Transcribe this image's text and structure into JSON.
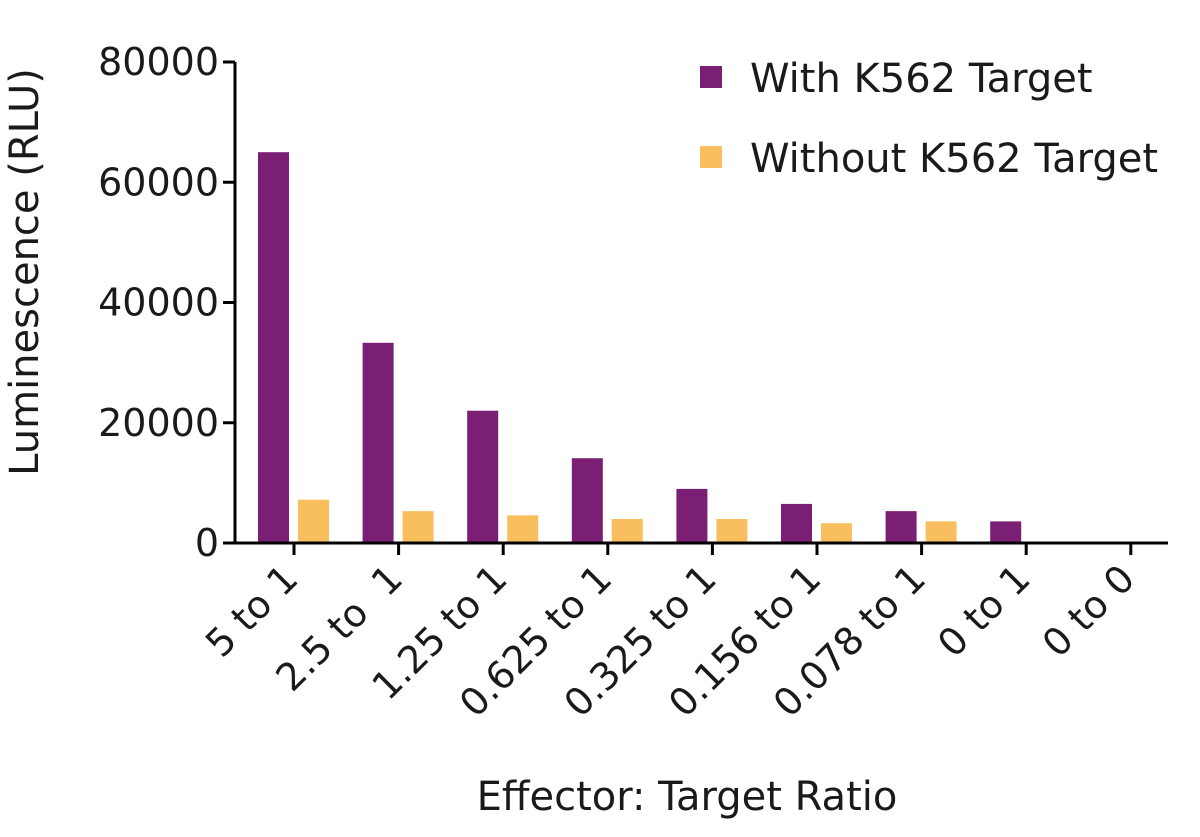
{
  "chart_data": {
    "type": "bar",
    "title": "",
    "xlabel": "Effector: Target Ratio",
    "ylabel": "Luminescence (RLU)",
    "ylim": [
      0,
      80000
    ],
    "yticks": [
      0,
      20000,
      40000,
      60000,
      80000
    ],
    "categories": [
      "5 to 1",
      "2.5 to  1",
      "1.25 to 1",
      "0.625 to 1",
      "0.325 to 1",
      "0.156 to 1",
      "0.078 to 1",
      "0 to 1",
      "0 to 0"
    ],
    "series": [
      {
        "name": "With K562 Target",
        "color": "#7b1f74",
        "values": [
          65000,
          33300,
          22000,
          14100,
          9000,
          6500,
          5300,
          3600,
          0
        ]
      },
      {
        "name": "Without K562 Target",
        "color": "#f9bf5e",
        "values": [
          7200,
          5300,
          4600,
          4000,
          4000,
          3300,
          3600,
          0,
          0
        ]
      }
    ],
    "grid": false,
    "legend_position": "top-right"
  }
}
